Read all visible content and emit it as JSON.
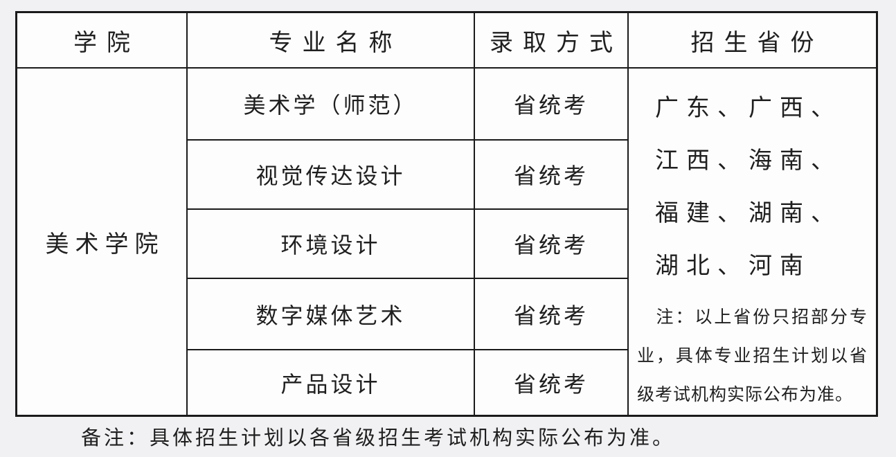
{
  "colors": {
    "page_bg": "#f1f1f3",
    "cell_bg": "#fdfdfd",
    "border": "#1a1a1a",
    "text": "#1f1f1f"
  },
  "table": {
    "headers": [
      "学院",
      "专业名称",
      "录取方式",
      "招生省份"
    ],
    "college": "美术学院",
    "rows": [
      {
        "major": "美术学（师范）",
        "admission": "省统考"
      },
      {
        "major": "视觉传达设计",
        "admission": "省统考"
      },
      {
        "major": "环境设计",
        "admission": "省统考"
      },
      {
        "major": "数字媒体艺术",
        "admission": "省统考"
      },
      {
        "major": "产品设计",
        "admission": "省统考"
      }
    ],
    "provinces": [
      "广东",
      "广西",
      "江西",
      "海南",
      "福建",
      "湖南",
      "湖北",
      "河南"
    ],
    "provinces_text": "广东、广西、江西、海南、福建、湖南、湖北、河南",
    "province_note": "注：以上省份只招部分专业，具体专业招生计划以省级考试机构实际公布为准。"
  },
  "footer_note": "备注：具体招生计划以各省级招生考试机构实际公布为准。"
}
